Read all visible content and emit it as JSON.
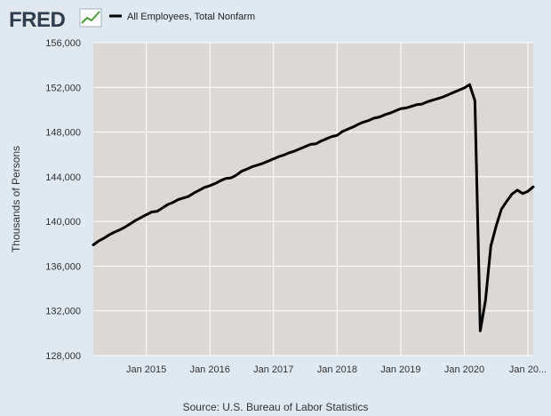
{
  "logo": {
    "text": "FRED"
  },
  "colors": {
    "page_bg": "#e1e9f0",
    "plot_bg": "#dcd8d6",
    "gridline": "#ffffff",
    "series_line": "#000000",
    "logo_text": "#2c3e50",
    "logo_icon_line": "#4b9c3a"
  },
  "chart_data": {
    "type": "line",
    "title": "",
    "xlabel": "",
    "ylabel": "Thousands of Persons",
    "source": "Source: U.S. Bureau of Labor Statistics",
    "legend": {
      "position": "top-left",
      "entries": [
        "All Employees, Total Nonfarm"
      ]
    },
    "grid": true,
    "xlim": [
      "2014-03",
      "2021-02"
    ],
    "ylim": [
      128000,
      156000
    ],
    "y_ticks": [
      128000,
      132000,
      136000,
      140000,
      144000,
      148000,
      152000,
      156000
    ],
    "y_tick_labels": [
      "128,000",
      "132,000",
      "136,000",
      "140,000",
      "144,000",
      "148,000",
      "152,000",
      "156,000"
    ],
    "x_ticks": [
      "2015-01",
      "2016-01",
      "2017-01",
      "2018-01",
      "2019-01",
      "2020-01",
      "2021-01"
    ],
    "x_tick_labels": [
      "Jan 2015",
      "Jan 2016",
      "Jan 2017",
      "Jan 2018",
      "Jan 2019",
      "Jan 2020",
      "Jan 20..."
    ],
    "series": [
      {
        "name": "All Employees, Total Nonfarm",
        "color": "#000000",
        "x": [
          "2014-03",
          "2014-04",
          "2014-05",
          "2014-06",
          "2014-07",
          "2014-08",
          "2014-09",
          "2014-10",
          "2014-11",
          "2014-12",
          "2015-01",
          "2015-02",
          "2015-03",
          "2015-04",
          "2015-05",
          "2015-06",
          "2015-07",
          "2015-08",
          "2015-09",
          "2015-10",
          "2015-11",
          "2015-12",
          "2016-01",
          "2016-02",
          "2016-03",
          "2016-04",
          "2016-05",
          "2016-06",
          "2016-07",
          "2016-08",
          "2016-09",
          "2016-10",
          "2016-11",
          "2016-12",
          "2017-01",
          "2017-02",
          "2017-03",
          "2017-04",
          "2017-05",
          "2017-06",
          "2017-07",
          "2017-08",
          "2017-09",
          "2017-10",
          "2017-11",
          "2017-12",
          "2018-01",
          "2018-02",
          "2018-03",
          "2018-04",
          "2018-05",
          "2018-06",
          "2018-07",
          "2018-08",
          "2018-09",
          "2018-10",
          "2018-11",
          "2018-12",
          "2019-01",
          "2019-02",
          "2019-03",
          "2019-04",
          "2019-05",
          "2019-06",
          "2019-07",
          "2019-08",
          "2019-09",
          "2019-10",
          "2019-11",
          "2019-12",
          "2020-01",
          "2020-02",
          "2020-03",
          "2020-04",
          "2020-05",
          "2020-06",
          "2020-07",
          "2020-08",
          "2020-09",
          "2020-10",
          "2020-11",
          "2020-12",
          "2021-01",
          "2021-02"
        ],
        "y": [
          137900,
          138250,
          138500,
          138800,
          139050,
          139250,
          139500,
          139800,
          140100,
          140350,
          140600,
          140850,
          140900,
          141200,
          141500,
          141700,
          141950,
          142100,
          142250,
          142550,
          142800,
          143050,
          143200,
          143400,
          143650,
          143850,
          143900,
          144150,
          144500,
          144700,
          144900,
          145050,
          145200,
          145400,
          145600,
          145800,
          145950,
          146150,
          146300,
          146500,
          146700,
          146900,
          146950,
          147200,
          147400,
          147600,
          147700,
          148050,
          148250,
          148450,
          148700,
          148900,
          149050,
          149250,
          149350,
          149550,
          149700,
          149900,
          150100,
          150150,
          150300,
          150450,
          150500,
          150700,
          150850,
          151000,
          151150,
          151350,
          151550,
          151750,
          151950,
          152250,
          150800,
          130200,
          132950,
          137800,
          139600,
          141100,
          141800,
          142450,
          142800,
          142500,
          142700,
          143100
        ]
      }
    ]
  }
}
